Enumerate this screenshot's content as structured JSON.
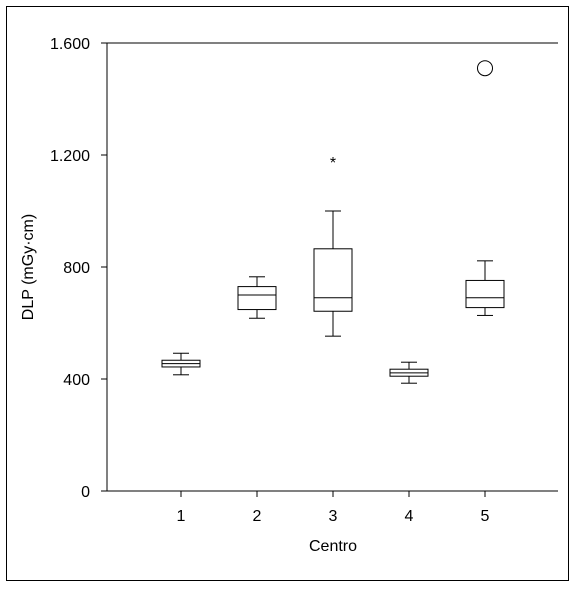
{
  "chart_data": {
    "type": "box",
    "title": "",
    "xlabel": "Centro",
    "ylabel": "DLP (mGy·cm)",
    "ylim": [
      0,
      1600
    ],
    "yticks": [
      0,
      400,
      800,
      1200,
      1600
    ],
    "ytick_labels": [
      "0",
      "400",
      "800",
      "1.200",
      "1.600"
    ],
    "categories": [
      "1",
      "2",
      "3",
      "4",
      "5"
    ],
    "grid": false,
    "boxes": [
      {
        "category": "1",
        "whisker_low": 415,
        "q1": 443,
        "median": 455,
        "q3": 467,
        "whisker_high": 492,
        "outliers": [],
        "extremes": []
      },
      {
        "category": "2",
        "whisker_low": 617,
        "q1": 648,
        "median": 700,
        "q3": 730,
        "whisker_high": 765,
        "outliers": [],
        "extremes": []
      },
      {
        "category": "3",
        "whisker_low": 553,
        "q1": 642,
        "median": 690,
        "q3": 865,
        "whisker_high": 1000,
        "outliers": [],
        "extremes": [
          1185
        ]
      },
      {
        "category": "4",
        "whisker_low": 385,
        "q1": 410,
        "median": 422,
        "q3": 435,
        "whisker_high": 460,
        "outliers": [],
        "extremes": []
      },
      {
        "category": "5",
        "whisker_low": 627,
        "q1": 655,
        "median": 690,
        "q3": 752,
        "whisker_high": 822,
        "outliers": [
          1510
        ],
        "extremes": []
      }
    ],
    "extreme_marker": "*"
  }
}
